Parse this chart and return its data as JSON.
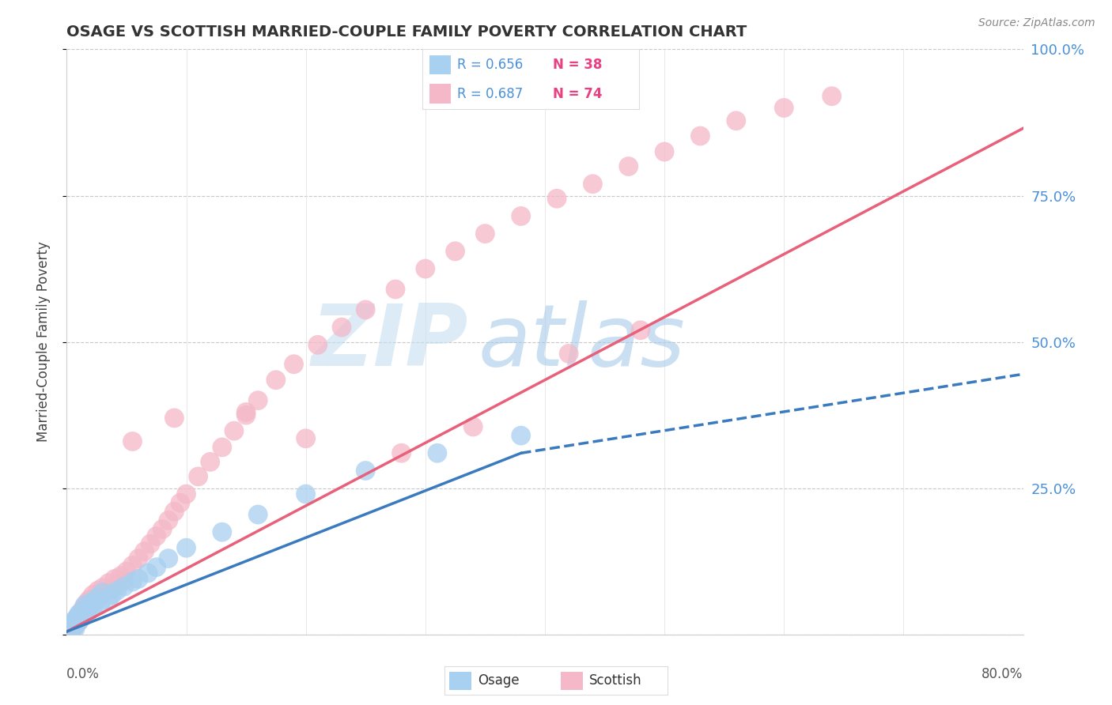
{
  "title": "OSAGE VS SCOTTISH MARRIED-COUPLE FAMILY POVERTY CORRELATION CHART",
  "source": "Source: ZipAtlas.com",
  "ylabel": "Married-Couple Family Poverty",
  "xmin": 0.0,
  "xmax": 0.8,
  "ymin": 0.0,
  "ymax": 1.0,
  "legend_r_osage": "R = 0.656",
  "legend_n_osage": "N = 38",
  "legend_r_scottish": "R = 0.687",
  "legend_n_scottish": "N = 74",
  "osage_color": "#a8d0f0",
  "scottish_color": "#f4b8c8",
  "osage_line_color": "#3a7abf",
  "scottish_line_color": "#e8607a",
  "watermark_zip": "ZIP",
  "watermark_atlas": "atlas",
  "background_color": "#ffffff",
  "grid_color": "#c8c8c8",
  "osage_x": [
    0.002,
    0.003,
    0.004,
    0.005,
    0.005,
    0.006,
    0.007,
    0.007,
    0.008,
    0.009,
    0.01,
    0.01,
    0.012,
    0.013,
    0.015,
    0.015,
    0.018,
    0.02,
    0.022,
    0.025,
    0.028,
    0.03,
    0.035,
    0.038,
    0.042,
    0.048,
    0.055,
    0.06,
    0.068,
    0.075,
    0.085,
    0.1,
    0.13,
    0.16,
    0.2,
    0.25,
    0.31,
    0.38
  ],
  "osage_y": [
    0.005,
    0.01,
    0.008,
    0.012,
    0.02,
    0.015,
    0.01,
    0.025,
    0.018,
    0.03,
    0.022,
    0.035,
    0.028,
    0.04,
    0.032,
    0.05,
    0.038,
    0.055,
    0.045,
    0.062,
    0.052,
    0.072,
    0.058,
    0.068,
    0.075,
    0.082,
    0.09,
    0.095,
    0.105,
    0.115,
    0.13,
    0.148,
    0.175,
    0.205,
    0.24,
    0.28,
    0.31,
    0.34
  ],
  "scottish_x": [
    0.002,
    0.003,
    0.004,
    0.005,
    0.006,
    0.007,
    0.008,
    0.009,
    0.01,
    0.011,
    0.012,
    0.013,
    0.014,
    0.015,
    0.016,
    0.017,
    0.018,
    0.019,
    0.02,
    0.022,
    0.024,
    0.026,
    0.028,
    0.03,
    0.032,
    0.035,
    0.038,
    0.04,
    0.042,
    0.045,
    0.048,
    0.05,
    0.055,
    0.06,
    0.065,
    0.07,
    0.075,
    0.08,
    0.085,
    0.09,
    0.095,
    0.1,
    0.11,
    0.12,
    0.13,
    0.14,
    0.15,
    0.16,
    0.175,
    0.19,
    0.21,
    0.23,
    0.25,
    0.275,
    0.3,
    0.325,
    0.35,
    0.38,
    0.41,
    0.44,
    0.47,
    0.5,
    0.53,
    0.56,
    0.6,
    0.64,
    0.34,
    0.28,
    0.42,
    0.48,
    0.2,
    0.15,
    0.09,
    0.055
  ],
  "scottish_y": [
    0.005,
    0.01,
    0.015,
    0.02,
    0.012,
    0.025,
    0.018,
    0.03,
    0.022,
    0.035,
    0.028,
    0.042,
    0.032,
    0.048,
    0.038,
    0.055,
    0.045,
    0.06,
    0.052,
    0.068,
    0.058,
    0.075,
    0.065,
    0.08,
    0.072,
    0.088,
    0.078,
    0.095,
    0.085,
    0.1,
    0.092,
    0.108,
    0.118,
    0.13,
    0.142,
    0.155,
    0.168,
    0.18,
    0.195,
    0.21,
    0.225,
    0.24,
    0.27,
    0.295,
    0.32,
    0.348,
    0.375,
    0.4,
    0.435,
    0.462,
    0.495,
    0.525,
    0.555,
    0.59,
    0.625,
    0.655,
    0.685,
    0.715,
    0.745,
    0.77,
    0.8,
    0.825,
    0.852,
    0.878,
    0.9,
    0.92,
    0.355,
    0.31,
    0.48,
    0.52,
    0.335,
    0.38,
    0.37,
    0.33
  ],
  "osage_line_x0": 0.0,
  "osage_line_y0": 0.005,
  "osage_line_x1": 0.8,
  "osage_line_y1": 0.445,
  "scottish_line_x0": 0.0,
  "scottish_line_y0": 0.005,
  "scottish_line_x1": 0.8,
  "scottish_line_y1": 0.865
}
